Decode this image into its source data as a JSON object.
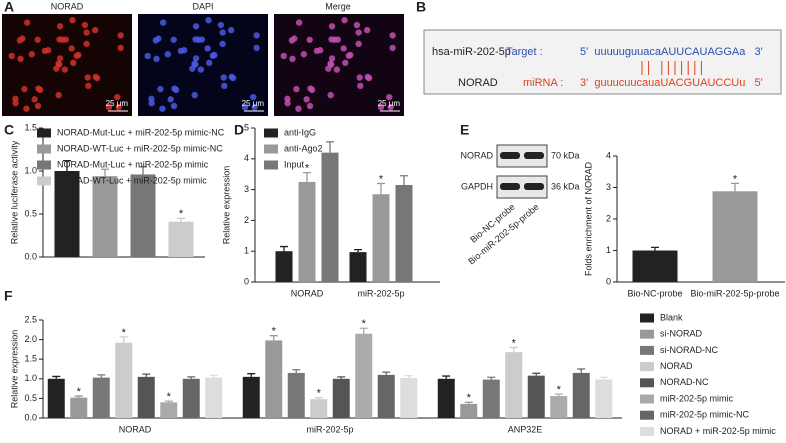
{
  "panel_labels": [
    "A",
    "B",
    "C",
    "D",
    "E",
    "F"
  ],
  "panel_a": {
    "captions": [
      "NORAD",
      "DAPI",
      "Merge"
    ],
    "scale_bar": "25 μm"
  },
  "panel_b": {
    "mirna_name": "hsa-miR-202-5p",
    "target_name": "NORAD",
    "target_label": "Target :",
    "mirna_label": "miRNA :",
    "target_seq": "5'  uuuuuguuacaAUUCAUAGGAa   3'",
    "mirna_seq": "3'  guuucuucauaUACGUAUCCUu   5'"
  },
  "panel_e_blot": {
    "rows": [
      "NORAD",
      "GAPDH"
    ],
    "sizes": [
      "70 kDa",
      "36 kDa"
    ],
    "lanes": [
      "Bio-NC-probe",
      "Bio-miR-202-5p-probe"
    ]
  },
  "chart_data": [
    {
      "type": "bar",
      "ylabel": "Relative luciferase activity",
      "categories": [
        null
      ],
      "series": [
        {
          "name": "NORAD-Mut-Luc + miR-202-5p mimic-NC",
          "color": "#222222",
          "values": [
            1.0
          ],
          "errors": [
            0.12
          ]
        },
        {
          "name": "NORAD-WT-Luc + miR-202-5p mimic-NC",
          "color": "#999999",
          "values": [
            0.94
          ],
          "errors": [
            0.08
          ]
        },
        {
          "name": "NORAD-Mut-Luc + miR-202-5p mimic",
          "color": "#777777",
          "values": [
            0.96
          ],
          "errors": [
            0.09
          ]
        },
        {
          "name": "NORAD-WT-Luc + miR-202-5p mimic",
          "color": "#cccccc",
          "values": [
            0.41
          ],
          "errors": [
            0.04
          ]
        }
      ],
      "ylim": [
        0,
        1.5
      ],
      "yticks": [
        {
          "value": 0,
          "label": "0.0"
        },
        0.5,
        {
          "value": 1,
          "label": "1.0"
        },
        1.5
      ],
      "annotations": [
        {
          "text": "*",
          "series": 3,
          "index": 0
        }
      ]
    },
    {
      "type": "bar",
      "ylabel": "Relative expression",
      "categories": [
        "NORAD",
        "miR-202-5p"
      ],
      "series": [
        {
          "name": "anti-IgG",
          "color": "#222222",
          "values": [
            1.0,
            0.97
          ],
          "errors": [
            0.15,
            0.08
          ]
        },
        {
          "name": "anti-Ago2",
          "color": "#999999",
          "values": [
            3.25,
            2.85
          ],
          "errors": [
            0.3,
            0.35
          ]
        },
        {
          "name": "Input",
          "color": "#777777",
          "values": [
            4.2,
            3.15
          ],
          "errors": [
            0.35,
            0.3
          ]
        }
      ],
      "ylim": [
        0,
        5
      ],
      "yticks": [
        0,
        1,
        2,
        3,
        4,
        5
      ],
      "annotations": [
        {
          "text": "*",
          "series": 1,
          "index": 0
        },
        {
          "text": "*",
          "series": 1,
          "index": 1
        }
      ]
    },
    {
      "type": "bar",
      "ylabel": "Folds enrichment of NORAD",
      "categories": [
        "Bio-NC-probe",
        "Bio-miR-202-5p-probe"
      ],
      "series": [
        {
          "name": null,
          "colors": [
            "#222222",
            "#999999"
          ],
          "values": [
            1.0,
            2.88
          ],
          "errors": [
            0.1,
            0.25
          ]
        }
      ],
      "ylim": [
        0,
        4
      ],
      "yticks": [
        0,
        1,
        2,
        3,
        4
      ],
      "annotations": [
        {
          "text": "*",
          "series": 0,
          "index": 1
        }
      ]
    },
    {
      "type": "bar",
      "ylabel": "Relative expression",
      "categories": [
        "NORAD",
        "miR-202-5p",
        "ANP32E"
      ],
      "series": [
        {
          "name": "Blank",
          "color": "#222222",
          "values": [
            1.0,
            1.05,
            1.0
          ],
          "errors": [
            0.06,
            0.08,
            0.07
          ]
        },
        {
          "name": "si-NORAD",
          "color": "#999999",
          "values": [
            0.52,
            1.98,
            0.36
          ],
          "errors": [
            0.04,
            0.12,
            0.04
          ]
        },
        {
          "name": "si-NORAD-NC",
          "color": "#777777",
          "values": [
            1.03,
            1.15,
            0.98
          ],
          "errors": [
            0.07,
            0.08,
            0.06
          ]
        },
        {
          "name": "NORAD",
          "color": "#cccccc",
          "values": [
            1.92,
            0.48,
            1.68
          ],
          "errors": [
            0.15,
            0.04,
            0.12
          ]
        },
        {
          "name": "NORAD-NC",
          "color": "#555555",
          "values": [
            1.05,
            1.0,
            1.08
          ],
          "errors": [
            0.07,
            0.05,
            0.06
          ]
        },
        {
          "name": "miR-202-5p mimic",
          "color": "#aaaaaa",
          "values": [
            0.4,
            2.15,
            0.56
          ],
          "errors": [
            0.03,
            0.14,
            0.05
          ]
        },
        {
          "name": "miR-202-5p mimic-NC",
          "color": "#666666",
          "values": [
            1.0,
            1.1,
            1.15
          ],
          "errors": [
            0.05,
            0.07,
            0.1
          ]
        },
        {
          "name": "NORAD + miR-202-5p mimic",
          "color": "#dddddd",
          "values": [
            1.03,
            1.02,
            0.98
          ],
          "errors": [
            0.06,
            0.06,
            0.06
          ]
        }
      ],
      "ylim": [
        0,
        2.5
      ],
      "yticks": [
        {
          "value": 0,
          "label": "0.0"
        },
        0.5,
        {
          "value": 1,
          "label": "1.0"
        },
        1.5,
        {
          "value": 2,
          "label": "2.0"
        },
        2.5
      ],
      "annotations": [
        {
          "text": "*",
          "series": 1,
          "index": 0
        },
        {
          "text": "*",
          "series": 3,
          "index": 0
        },
        {
          "text": "*",
          "series": 5,
          "index": 0
        },
        {
          "text": "*",
          "series": 1,
          "index": 1
        },
        {
          "text": "*",
          "series": 3,
          "index": 1
        },
        {
          "text": "*",
          "series": 5,
          "index": 1
        },
        {
          "text": "*",
          "series": 1,
          "index": 2
        },
        {
          "text": "*",
          "series": 3,
          "index": 2
        },
        {
          "text": "*",
          "series": 5,
          "index": 2
        }
      ]
    }
  ]
}
